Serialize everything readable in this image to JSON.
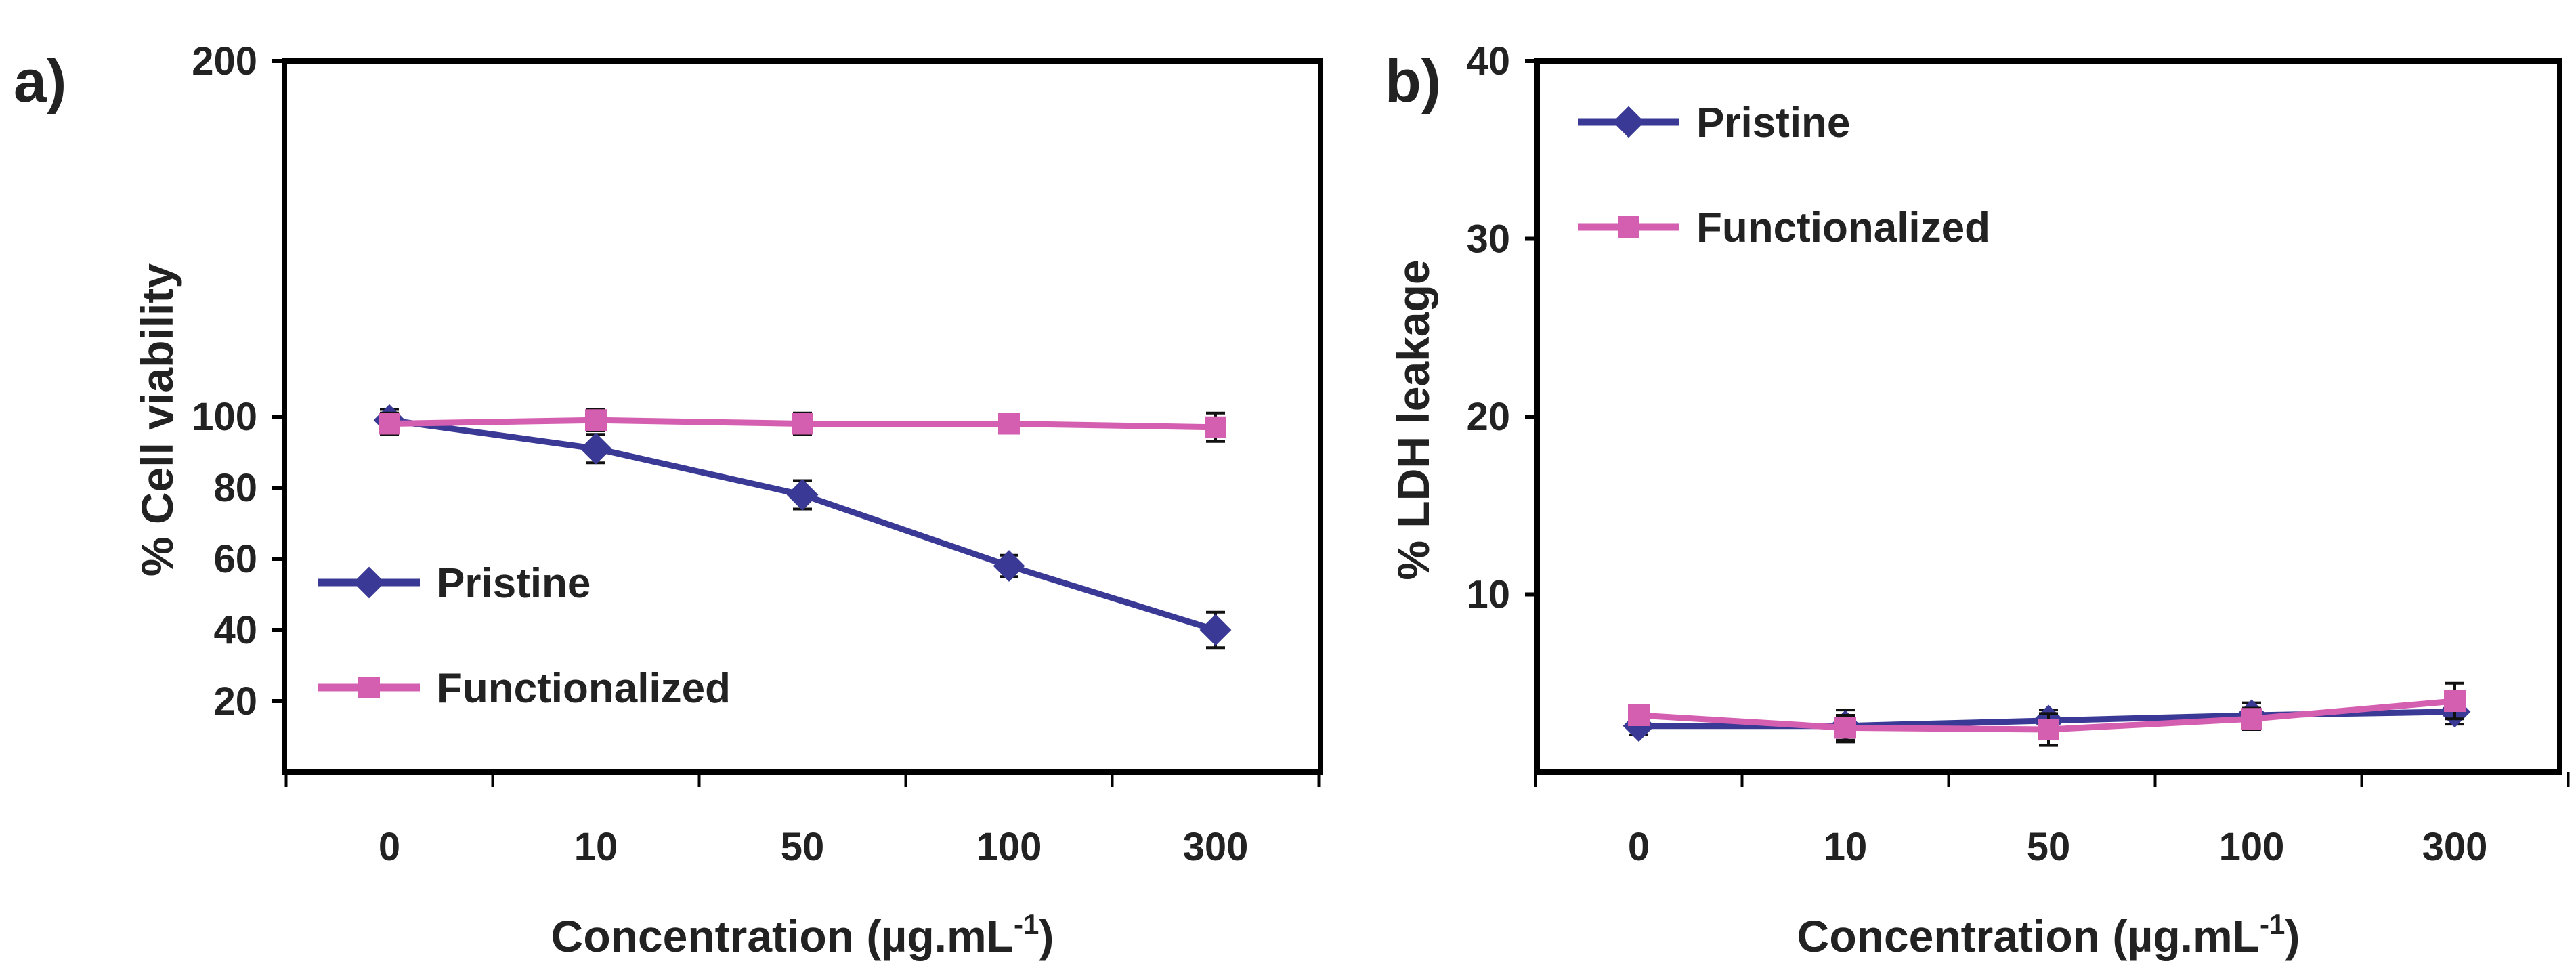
{
  "chart_data": [
    {
      "panel": "a)",
      "type": "line",
      "title": "",
      "xlabel": "Concentration (µg.mL",
      "xlabel_sup": "-1",
      "xlabel_close": ")",
      "ylabel": "% Cell viability",
      "categories": [
        "0",
        "10",
        "50",
        "100",
        "300"
      ],
      "ylim": [
        0,
        200
      ],
      "yticks": [
        20,
        40,
        60,
        80,
        100,
        200
      ],
      "legend_position": "lower-left",
      "series": [
        {
          "name": "Pristine",
          "color": "#3a3a96",
          "marker": "diamond",
          "values": [
            99,
            91,
            78,
            58,
            40
          ],
          "errors": [
            3,
            4,
            4,
            3,
            5
          ]
        },
        {
          "name": "Functionalized",
          "color": "#d45fb0",
          "marker": "square",
          "values": [
            98,
            99,
            98,
            98,
            97
          ],
          "errors": [
            3,
            3,
            3,
            2,
            4
          ]
        }
      ]
    },
    {
      "panel": "b)",
      "type": "line",
      "title": "",
      "xlabel": "Concentration (µg.mL",
      "xlabel_sup": "-1",
      "xlabel_close": ")",
      "ylabel": "% LDH leakage",
      "categories": [
        "0",
        "10",
        "50",
        "100",
        "300"
      ],
      "ylim": [
        0,
        40
      ],
      "yticks": [
        10,
        20,
        30,
        40
      ],
      "legend_position": "top-left",
      "series": [
        {
          "name": "Pristine",
          "color": "#3a3a96",
          "marker": "diamond",
          "values": [
            2.6,
            2.6,
            2.9,
            3.2,
            3.4
          ],
          "errors": [
            0.5,
            0.9,
            0.6,
            0.7,
            0.7
          ]
        },
        {
          "name": "Functionalized",
          "color": "#d45fb0",
          "marker": "square",
          "values": [
            3.2,
            2.5,
            2.4,
            3.0,
            4.0
          ],
          "errors": [
            0.4,
            0.7,
            0.9,
            0.6,
            1.0
          ]
        }
      ]
    }
  ]
}
